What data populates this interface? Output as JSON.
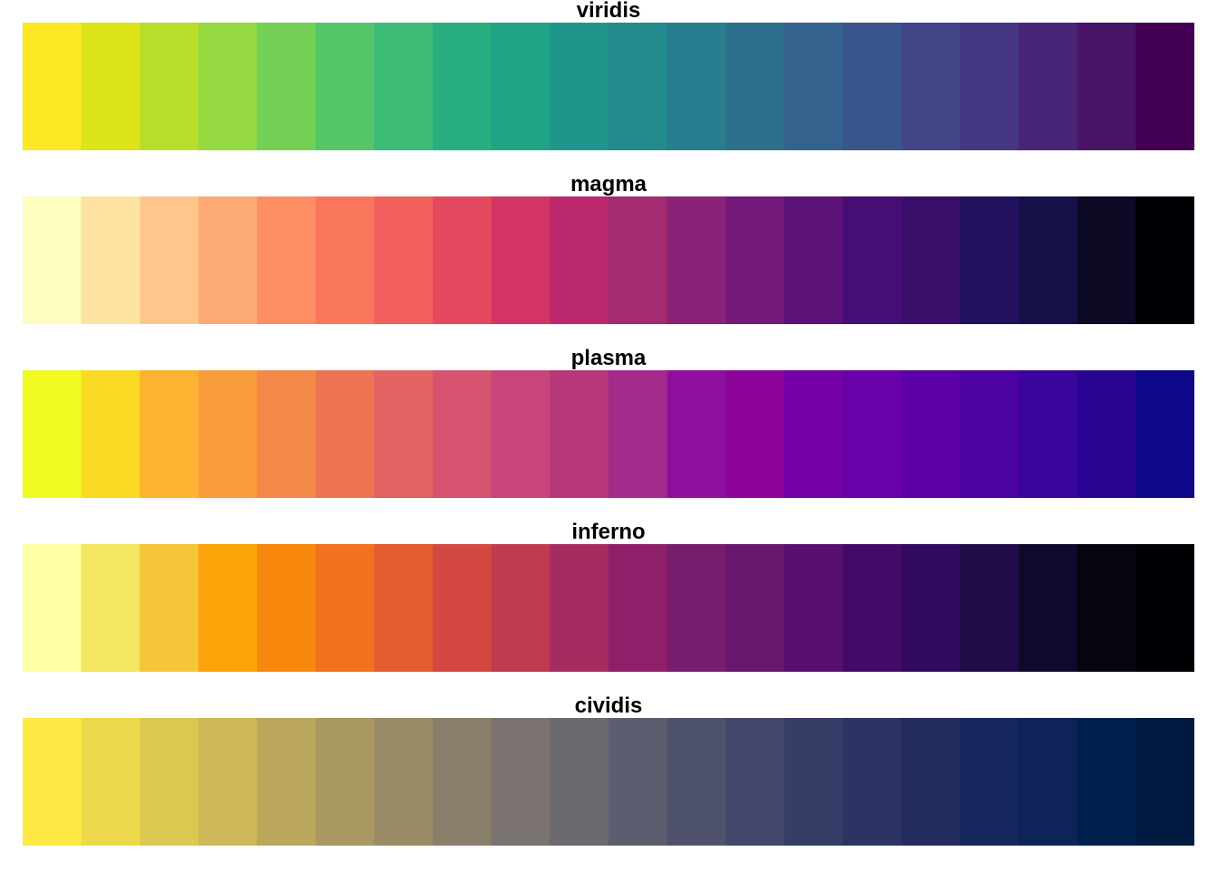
{
  "chart_data": {
    "type": "heatmap",
    "palettes": [
      {
        "name": "viridis",
        "colors": [
          "#FDE725",
          "#DCE319",
          "#B8DE29",
          "#95D840",
          "#73D055",
          "#55C667",
          "#3CBB75",
          "#29AF7F",
          "#20A387",
          "#1F968B",
          "#238A8D",
          "#287D8E",
          "#2D708E",
          "#33638D",
          "#39568C",
          "#404688",
          "#453781",
          "#482677",
          "#481567",
          "#440154"
        ]
      },
      {
        "name": "magma",
        "colors": [
          "#FCFDBF",
          "#FDE2A2",
          "#FEC68A",
          "#FEAA76",
          "#FD8D63",
          "#F8765C",
          "#F1605D",
          "#E5495F",
          "#D23463",
          "#BB2A6C",
          "#A22B72",
          "#8A2278",
          "#731A7A",
          "#5C1378",
          "#450E74",
          "#3A0F69",
          "#23115D",
          "#17114A",
          "#0B0924",
          "#000004"
        ]
      },
      {
        "name": "plasma",
        "colors": [
          "#F0F921",
          "#FADA24",
          "#FDB32F",
          "#F99C3C",
          "#F48849",
          "#ED7453",
          "#E16462",
          "#D5536F",
          "#C8447A",
          "#B63679",
          "#A12A8B",
          "#8E0F9E",
          "#8C0399",
          "#7501A8",
          "#6A00A8",
          "#5B01A5",
          "#4C02A1",
          "#3B049A",
          "#2A0593",
          "#0D0887"
        ]
      },
      {
        "name": "inferno",
        "colors": [
          "#FCFFA4",
          "#F3E660",
          "#F6C63A",
          "#FBA40A",
          "#F8870E",
          "#F1711F",
          "#E55C30",
          "#D44842",
          "#C03A51",
          "#A52C60",
          "#8E1F69",
          "#781C6D",
          "#6A176E",
          "#57106E",
          "#440A68",
          "#320A5E",
          "#210C4A",
          "#11092B",
          "#05040F",
          "#000004"
        ]
      },
      {
        "name": "cividis",
        "colors": [
          "#FFE945",
          "#EDD94B",
          "#DCC851",
          "#CCB856",
          "#BAA75B",
          "#A99861",
          "#9A8C66",
          "#8A7F6B",
          "#7A736F",
          "#6B6870",
          "#5C5D6E",
          "#4E526C",
          "#43476A",
          "#363D67",
          "#2D3463",
          "#222C5F",
          "#15275D",
          "#0E2459",
          "#00204D",
          "#001A40"
        ]
      }
    ]
  }
}
